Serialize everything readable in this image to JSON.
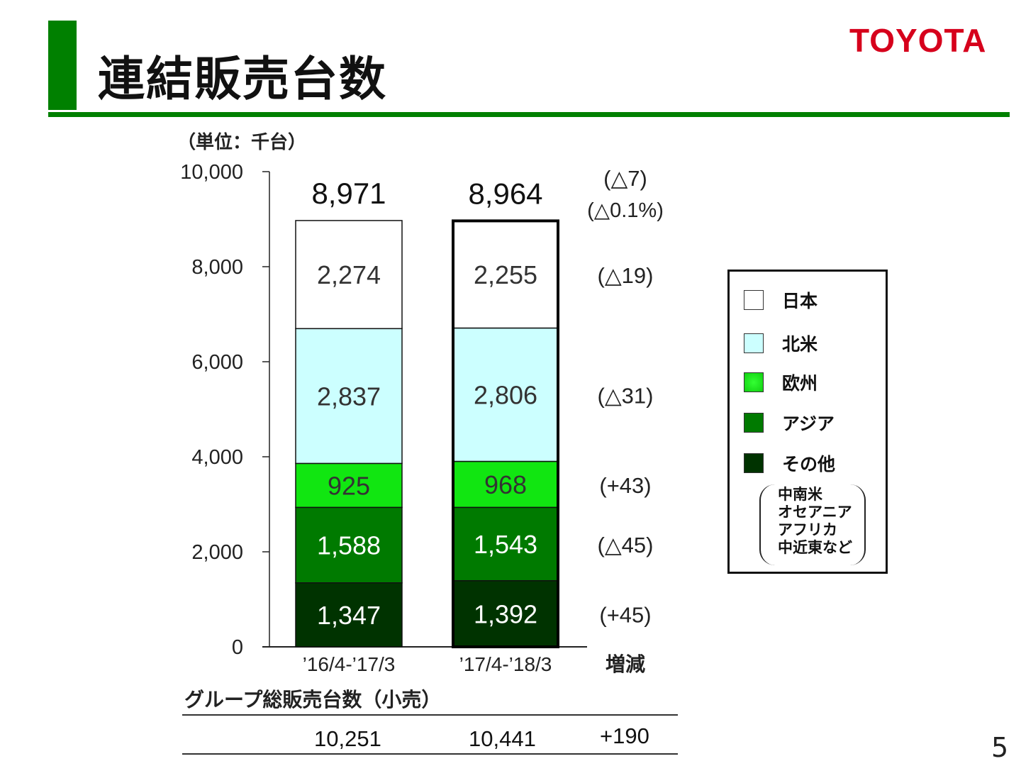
{
  "header": {
    "title": "連結販売台数",
    "logo": "TOYOTA"
  },
  "chart_data": {
    "type": "bar",
    "stacked": true,
    "unit_label": "（単位：千台）",
    "categories": [
      "’16/4-’17/3",
      "’17/4-’18/3"
    ],
    "change_header": "増減",
    "ylim": [
      0,
      10000
    ],
    "yticks": [
      "0",
      "2,000",
      "4,000",
      "6,000",
      "8,000",
      "10,000"
    ],
    "ytick_values": [
      0,
      2000,
      4000,
      6000,
      8000,
      10000
    ],
    "series": [
      {
        "name": "その他",
        "color": "#003300",
        "label_color": "#ffffff",
        "values": [
          1347,
          1392
        ],
        "labels": [
          "1,347",
          "1,392"
        ],
        "change": "(+45)"
      },
      {
        "name": "アジア",
        "color": "#007a00",
        "label_color": "#ffffff",
        "values": [
          1588,
          1543
        ],
        "labels": [
          "1,588",
          "1,543"
        ],
        "change": "(△45)"
      },
      {
        "name": "欧州",
        "color": "#11e611",
        "label_color": "#333333",
        "values": [
          925,
          968
        ],
        "labels": [
          "925",
          "968"
        ],
        "change": "(+43)"
      },
      {
        "name": "北米",
        "color": "#ccffff",
        "label_color": "#333333",
        "values": [
          2837,
          2806
        ],
        "labels": [
          "2,837",
          "2,806"
        ],
        "change": "(△31)"
      },
      {
        "name": "日本",
        "color": "#ffffff",
        "label_color": "#333333",
        "values": [
          2274,
          2255
        ],
        "labels": [
          "2,274",
          "2,255"
        ],
        "change": "(△19)"
      }
    ],
    "totals": [
      "8,971",
      "8,964"
    ],
    "total_values": [
      8971,
      8964
    ],
    "total_change": "(△7)",
    "total_change_pct": "(△0.1%)",
    "legend_placement": "right",
    "legend_note": [
      "中南米",
      "オセアニア",
      "アフリカ",
      "中近東など"
    ]
  },
  "group": {
    "title": "グループ総販売台数（小売）",
    "values": [
      "10,251",
      "10,441"
    ],
    "change": "+190"
  },
  "page_number": "5"
}
